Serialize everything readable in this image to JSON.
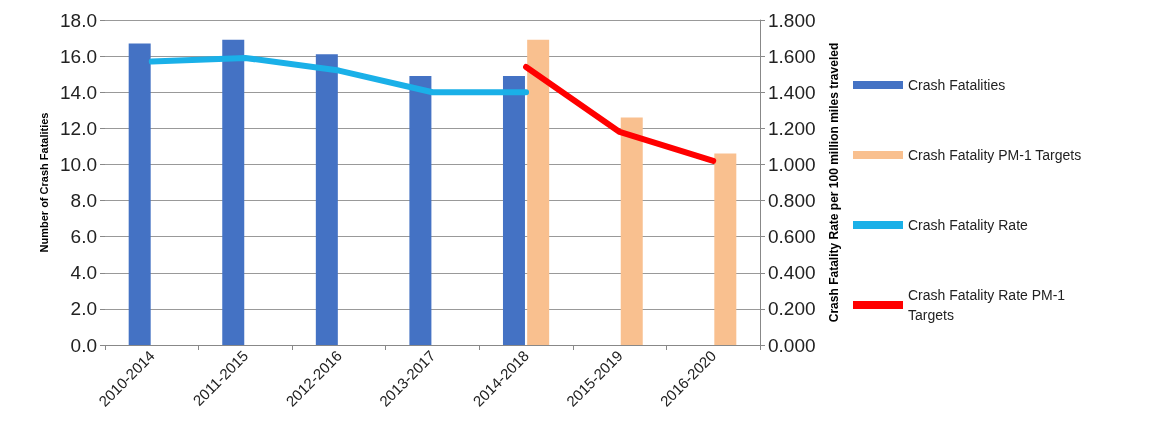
{
  "chart_data": {
    "type": "bar",
    "categories": [
      "2010-2014",
      "2011-2015",
      "2012-2016",
      "2013-2017",
      "2014-2018",
      "2015-2019",
      "2016-2020"
    ],
    "series": [
      {
        "name": "Crash Fatalities",
        "color": "#4472c4",
        "values": [
          16.7,
          16.9,
          16.1,
          14.9,
          14.9,
          null,
          null
        ]
      },
      {
        "name": "Crash Fatality PM-1 Targets",
        "color": "#f9c08f",
        "values": [
          null,
          null,
          null,
          null,
          16.9,
          12.6,
          10.6
        ]
      },
      {
        "name": "Crash Fatality Rate",
        "type": "line",
        "axis": "y2",
        "color": "#1ab0e8",
        "values": [
          1.57,
          1.59,
          1.52,
          1.4,
          1.4,
          null,
          null
        ]
      },
      {
        "name": "Crash Fatality Rate PM-1 Targets",
        "type": "line",
        "axis": "y2",
        "color": "#ff0000",
        "values": [
          null,
          null,
          null,
          null,
          1.54,
          1.18,
          1.02
        ]
      }
    ],
    "ylabel": "Number of Crash Fatalities",
    "y2label": "Crash Fatality Rate per 100 million miles traveled",
    "ylim": [
      0,
      18
    ],
    "yticks": [
      {
        "value": 0,
        "label": "0.0"
      },
      {
        "value": 2,
        "label": "2.0"
      },
      {
        "value": 4,
        "label": "4.0"
      },
      {
        "value": 6,
        "label": "6.0"
      },
      {
        "value": 8,
        "label": "8.0"
      },
      {
        "value": 10,
        "label": "10.0"
      },
      {
        "value": 12,
        "label": "12.0"
      },
      {
        "value": 14,
        "label": "14.0"
      },
      {
        "value": 16,
        "label": "16.0"
      },
      {
        "value": 18,
        "label": "18.0"
      }
    ],
    "y2lim": [
      0,
      1.8
    ],
    "y2ticks": [
      {
        "value": 0,
        "label": "0.000"
      },
      {
        "value": 0.2,
        "label": "0.200"
      },
      {
        "value": 0.4,
        "label": "0.400"
      },
      {
        "value": 0.6,
        "label": "0.600"
      },
      {
        "value": 0.8,
        "label": "0.800"
      },
      {
        "value": 1,
        "label": "1.000"
      },
      {
        "value": 1.2,
        "label": "1.200"
      },
      {
        "value": 1.4,
        "label": "1.400"
      },
      {
        "value": 1.6,
        "label": "1.600"
      },
      {
        "value": 1.8,
        "label": "1.800"
      }
    ],
    "grid": "y",
    "legend": "right",
    "marker": "none",
    "line_style": "solid"
  }
}
